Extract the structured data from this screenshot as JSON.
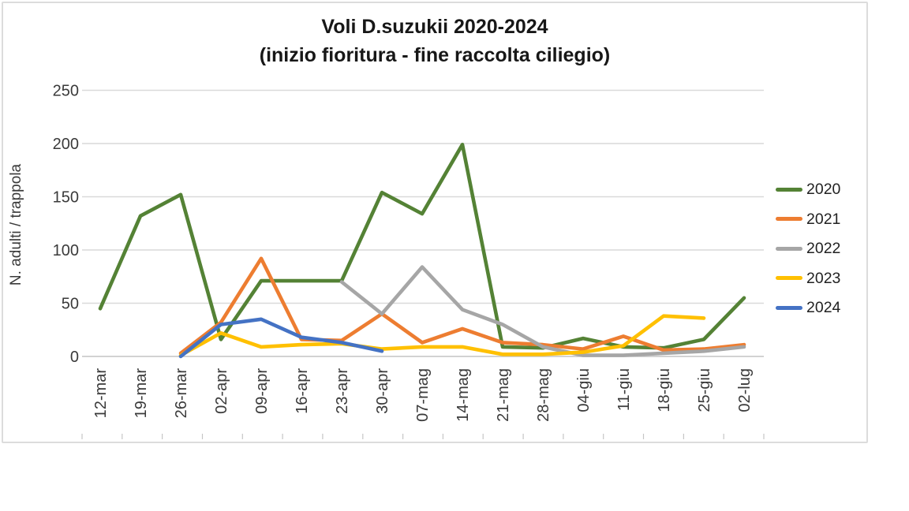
{
  "chart": {
    "title_line1": "Voli D.suzukii 2020-2024",
    "title_line2": "(inizio fioritura - fine raccolta ciliegio)"
  },
  "chart_data": {
    "type": "line",
    "title": "Voli D.suzukii 2020-2024 (inizio fioritura - fine raccolta ciliegio)",
    "ylabel": "N. adulti / trappola",
    "xlabel": "",
    "ylim": [
      0,
      250
    ],
    "yticks": [
      0,
      50,
      100,
      150,
      200,
      250
    ],
    "grid": true,
    "legend_position": "right",
    "background": "#ffffff",
    "gridline_color": "#d9d9d9",
    "axis_line_color": "#c3c3c3",
    "categories": [
      "12-mar",
      "19-mar",
      "26-mar",
      "02-apr",
      "09-apr",
      "16-apr",
      "23-apr",
      "30-apr",
      "07-mag",
      "14-mag",
      "21-mag",
      "28-mag",
      "04-giu",
      "11-giu",
      "18-giu",
      "25-giu",
      "02-lug"
    ],
    "series": [
      {
        "name": "2020",
        "color": "#548235",
        "values": [
          45,
          132,
          152,
          16,
          71,
          71,
          71,
          154,
          134,
          199,
          9,
          8,
          17,
          9,
          8,
          16,
          55
        ]
      },
      {
        "name": "2021",
        "color": "#ED7D31",
        "values": [
          null,
          null,
          3,
          32,
          92,
          16,
          15,
          40,
          13,
          26,
          13,
          11,
          7,
          19,
          6,
          7,
          11
        ]
      },
      {
        "name": "2022",
        "color": "#A6A6A6",
        "values": [
          null,
          null,
          null,
          null,
          null,
          null,
          70,
          40,
          84,
          44,
          30,
          9,
          1,
          1,
          3,
          5,
          9
        ]
      },
      {
        "name": "2023",
        "color": "#FFC000",
        "values": [
          null,
          null,
          1,
          22,
          9,
          11,
          12,
          7,
          9,
          9,
          2,
          2,
          4,
          10,
          38,
          36,
          null
        ]
      },
      {
        "name": "2024",
        "color": "#4472C4",
        "values": [
          null,
          null,
          0,
          30,
          35,
          18,
          13,
          5,
          null,
          null,
          null,
          null,
          null,
          null,
          null,
          null,
          null
        ]
      }
    ]
  }
}
